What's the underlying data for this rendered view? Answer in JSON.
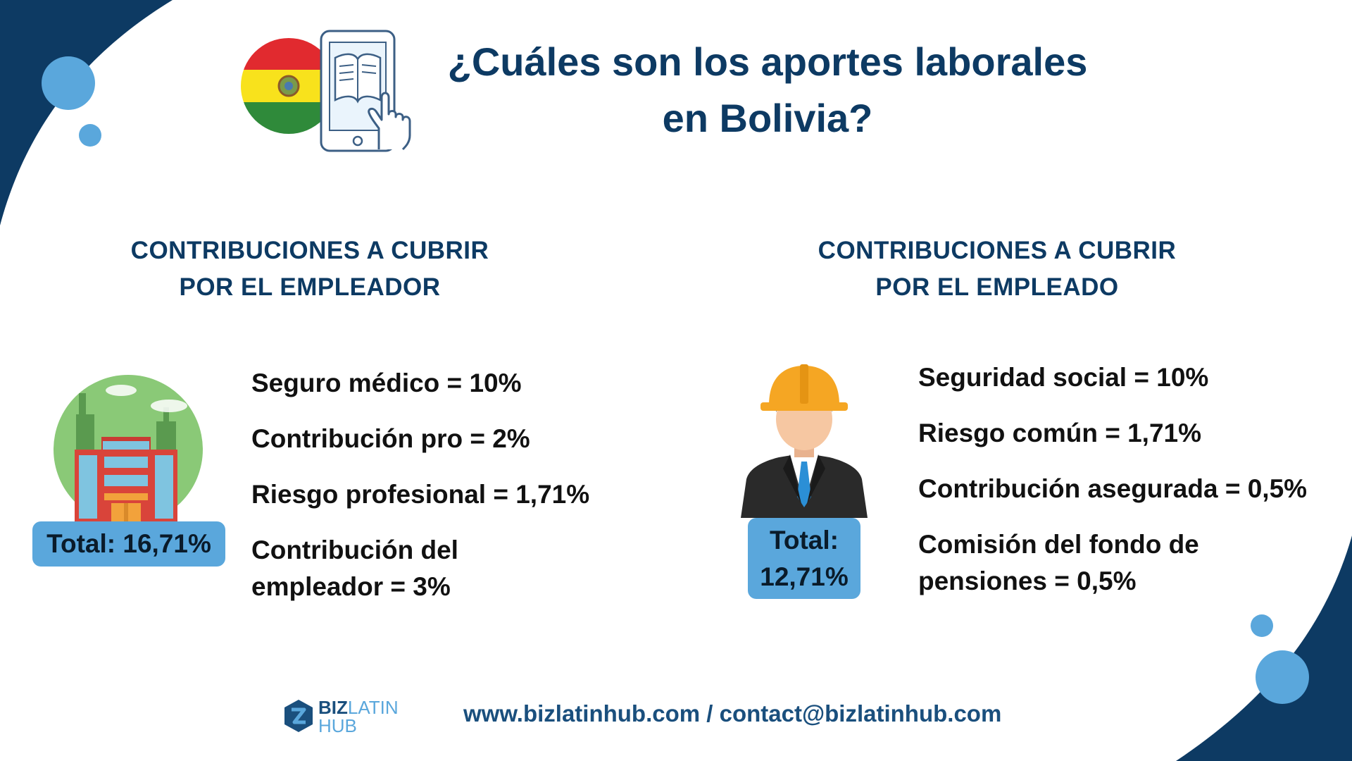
{
  "header": {
    "title_line1": "¿Cuáles son los aportes laborales",
    "title_line2": "en Bolivia?"
  },
  "employer": {
    "heading_line1": "CONTRIBUCIONES A CUBRIR",
    "heading_line2": "POR EL EMPLEADOR",
    "items": [
      "Seguro médico = 10%",
      "Contribución pro = 2%",
      "Riesgo profesional = 1,71%"
    ],
    "last_item_line1": "Contribución del",
    "last_item_line2": "empleador = 3%",
    "total": "Total: 16,71%"
  },
  "employee": {
    "heading_line1": "CONTRIBUCIONES A CUBRIR",
    "heading_line2": "POR EL EMPLEADO",
    "items": [
      "Seguridad social = 10%",
      "Riesgo común = 1,71%",
      "Contribución asegurada = 0,5%"
    ],
    "last_item_line1": "Comisión del fondo de",
    "last_item_line2": "pensiones = 0,5%",
    "total_line1": "Total:",
    "total_line2": "12,71%"
  },
  "footer": {
    "logo_biz": "BIZ",
    "logo_latin": "LATIN",
    "logo_hub": "HUB",
    "contact": "www.bizlatinhub.com / contact@bizlatinhub.com"
  },
  "colors": {
    "navy": "#0d3a63",
    "light_blue": "#5aa7dc",
    "text": "#111111"
  },
  "icons": [
    "bolivia-flag-icon",
    "tablet-book-icon",
    "hand-pointer-icon",
    "building-icon",
    "worker-icon",
    "bizlatinhub-logo-icon"
  ]
}
